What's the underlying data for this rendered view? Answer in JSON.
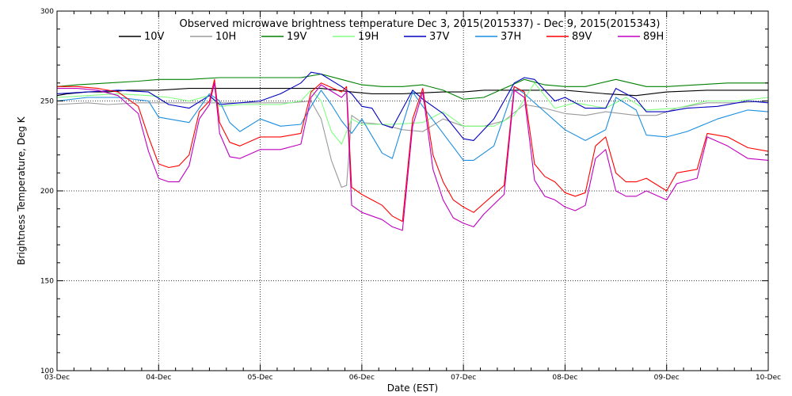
{
  "chart_data": {
    "type": "line",
    "title": "Observed microwave brightness temperature Dec  3, 2015(2015337) - Dec  9, 2015(2015343)",
    "xlabel": "Date (EST)",
    "ylabel": "Brightness Temperature, Deg K",
    "ylim": [
      100,
      300
    ],
    "yticks": [
      100,
      150,
      200,
      250,
      300
    ],
    "x_range_days": [
      0,
      7
    ],
    "x_tick_labels": [
      "03-Dec",
      "04-Dec",
      "05-Dec",
      "06-Dec",
      "07-Dec",
      "08-Dec",
      "09-Dec",
      "10-Dec"
    ],
    "grid": true,
    "x_unit": "days since 03-Dec 00:00 EST",
    "series": [
      {
        "name": "10V",
        "color": "#000000",
        "x": [
          0,
          0.1,
          0.3,
          0.5,
          0.7,
          1.0,
          1.3,
          1.6,
          2.0,
          2.3,
          2.6,
          2.9,
          3.1,
          3.4,
          3.8,
          4.0,
          4.2,
          4.5,
          4.7,
          5.0,
          5.4,
          5.7,
          6.0,
          6.4,
          6.7,
          7.0
        ],
        "y": [
          253,
          254,
          255,
          255,
          256,
          256,
          257,
          257,
          257,
          257,
          257,
          255,
          254,
          254,
          255,
          255,
          256,
          256,
          256,
          256,
          254,
          253,
          255,
          256,
          256,
          256
        ]
      },
      {
        "name": "10H",
        "color": "#9a9a9a",
        "x": [
          0,
          0.3,
          0.5,
          0.8,
          1.2,
          1.5,
          1.9,
          2.3,
          2.5,
          2.6,
          2.7,
          2.8,
          2.85,
          2.9,
          3.0,
          3.2,
          3.4,
          3.6,
          3.8,
          4.0,
          4.2,
          4.4,
          4.6,
          4.8,
          5.0,
          5.2,
          5.4,
          5.7,
          5.9,
          6.1,
          6.4,
          6.7,
          7.0
        ],
        "y": [
          248,
          249,
          248,
          249,
          249,
          249,
          249,
          249,
          250,
          240,
          217,
          202,
          203,
          242,
          238,
          237,
          234,
          233,
          240,
          236,
          236,
          239,
          248,
          246,
          243,
          242,
          244,
          242,
          242,
          246,
          249,
          249,
          250
        ]
      },
      {
        "name": "19V",
        "color": "#008000",
        "x": [
          0,
          0.2,
          0.5,
          0.8,
          1.0,
          1.3,
          1.6,
          2.0,
          2.4,
          2.6,
          2.8,
          3.0,
          3.2,
          3.4,
          3.6,
          3.8,
          4.0,
          4.2,
          4.4,
          4.6,
          4.8,
          5.0,
          5.2,
          5.5,
          5.8,
          6.0,
          6.3,
          6.6,
          7.0
        ],
        "y": [
          258,
          259,
          260,
          261,
          262,
          262,
          263,
          263,
          263,
          265,
          262,
          259,
          258,
          258,
          259,
          256,
          251,
          252,
          257,
          262,
          259,
          258,
          258,
          262,
          258,
          258,
          259,
          260,
          260
        ]
      },
      {
        "name": "19H",
        "color": "#80ff80",
        "x": [
          0,
          0.3,
          0.6,
          0.9,
          1.1,
          1.3,
          1.5,
          1.6,
          1.8,
          2.0,
          2.2,
          2.4,
          2.5,
          2.6,
          2.7,
          2.8,
          2.9,
          3.0,
          3.3,
          3.6,
          3.8,
          4.0,
          4.3,
          4.5,
          4.7,
          4.9,
          5.1,
          5.4,
          5.6,
          5.8,
          6.1,
          6.4,
          6.7,
          7.0
        ],
        "y": [
          252,
          253,
          254,
          253,
          252,
          250,
          253,
          247,
          248,
          248,
          248,
          250,
          256,
          250,
          233,
          226,
          240,
          237,
          237,
          238,
          244,
          236,
          236,
          242,
          260,
          246,
          249,
          246,
          252,
          245,
          246,
          250,
          250,
          252
        ]
      },
      {
        "name": "37V",
        "color": "#0000c0",
        "x": [
          0,
          0.3,
          0.6,
          0.9,
          1.1,
          1.3,
          1.5,
          1.6,
          1.8,
          2.0,
          2.2,
          2.4,
          2.5,
          2.6,
          2.8,
          2.9,
          3.0,
          3.1,
          3.2,
          3.3,
          3.5,
          3.6,
          3.8,
          4.0,
          4.1,
          4.3,
          4.5,
          4.6,
          4.7,
          4.9,
          5.0,
          5.2,
          5.4,
          5.5,
          5.7,
          5.8,
          6.0,
          6.2,
          6.5,
          6.8,
          7.0
        ],
        "y": [
          254,
          255,
          256,
          255,
          248,
          246,
          253,
          248,
          249,
          250,
          254,
          260,
          266,
          265,
          258,
          254,
          247,
          246,
          237,
          235,
          256,
          251,
          243,
          229,
          228,
          240,
          260,
          263,
          262,
          250,
          252,
          246,
          246,
          257,
          251,
          244,
          244,
          246,
          247,
          250,
          249
        ]
      },
      {
        "name": "37H",
        "color": "#1a8ee0",
        "x": [
          0,
          0.3,
          0.6,
          0.9,
          1.0,
          1.1,
          1.3,
          1.5,
          1.6,
          1.7,
          1.8,
          2.0,
          2.2,
          2.4,
          2.5,
          2.6,
          2.7,
          2.8,
          2.9,
          3.0,
          3.2,
          3.3,
          3.5,
          3.6,
          3.8,
          4.0,
          4.1,
          4.3,
          4.5,
          4.6,
          4.8,
          5.0,
          5.2,
          5.4,
          5.5,
          5.7,
          5.8,
          6.0,
          6.2,
          6.5,
          6.8,
          7.0
        ],
        "y": [
          250,
          252,
          252,
          250,
          241,
          240,
          238,
          254,
          250,
          238,
          233,
          240,
          236,
          237,
          247,
          256,
          248,
          239,
          232,
          240,
          221,
          218,
          255,
          247,
          232,
          217,
          217,
          225,
          258,
          254,
          244,
          234,
          228,
          234,
          252,
          245,
          231,
          230,
          233,
          240,
          245,
          244
        ]
      },
      {
        "name": "89V",
        "color": "#ff0000",
        "x": [
          0,
          0.2,
          0.4,
          0.6,
          0.8,
          0.9,
          1.0,
          1.1,
          1.2,
          1.3,
          1.4,
          1.5,
          1.55,
          1.6,
          1.7,
          1.8,
          2.0,
          2.2,
          2.4,
          2.5,
          2.6,
          2.8,
          2.85,
          2.9,
          3.0,
          3.2,
          3.3,
          3.4,
          3.5,
          3.6,
          3.7,
          3.8,
          3.9,
          4.0,
          4.1,
          4.2,
          4.4,
          4.5,
          4.6,
          4.7,
          4.8,
          4.9,
          5.0,
          5.1,
          5.2,
          5.3,
          5.4,
          5.5,
          5.6,
          5.7,
          5.8,
          6.0,
          6.1,
          6.3,
          6.4,
          6.6,
          6.8,
          7.0
        ],
        "y": [
          258,
          258,
          257,
          255,
          247,
          230,
          215,
          213,
          214,
          220,
          244,
          250,
          262,
          238,
          227,
          225,
          230,
          230,
          232,
          255,
          260,
          255,
          258,
          202,
          198,
          192,
          186,
          183,
          240,
          257,
          220,
          205,
          195,
          191,
          188,
          193,
          203,
          258,
          255,
          215,
          208,
          205,
          199,
          197,
          199,
          225,
          230,
          210,
          205,
          205,
          207,
          200,
          210,
          212,
          232,
          230,
          224,
          222
        ]
      },
      {
        "name": "89H",
        "color": "#c000c0",
        "x": [
          0,
          0.2,
          0.4,
          0.6,
          0.8,
          0.9,
          1.0,
          1.1,
          1.2,
          1.3,
          1.4,
          1.5,
          1.55,
          1.6,
          1.7,
          1.8,
          2.0,
          2.2,
          2.4,
          2.5,
          2.6,
          2.8,
          2.85,
          2.9,
          3.0,
          3.2,
          3.3,
          3.4,
          3.5,
          3.6,
          3.7,
          3.8,
          3.9,
          4.0,
          4.1,
          4.2,
          4.4,
          4.5,
          4.6,
          4.7,
          4.8,
          4.9,
          5.0,
          5.1,
          5.2,
          5.3,
          5.4,
          5.5,
          5.6,
          5.7,
          5.8,
          6.0,
          6.1,
          6.3,
          6.4,
          6.6,
          6.8,
          7.0
        ],
        "y": [
          257,
          257,
          256,
          253,
          243,
          222,
          207,
          205,
          205,
          214,
          240,
          248,
          260,
          232,
          219,
          218,
          223,
          223,
          226,
          252,
          259,
          252,
          255,
          192,
          188,
          184,
          180,
          178,
          236,
          255,
          212,
          195,
          185,
          182,
          180,
          187,
          198,
          256,
          252,
          206,
          197,
          195,
          191,
          189,
          192,
          218,
          223,
          200,
          197,
          197,
          200,
          195,
          204,
          207,
          230,
          225,
          218,
          217
        ]
      }
    ]
  }
}
